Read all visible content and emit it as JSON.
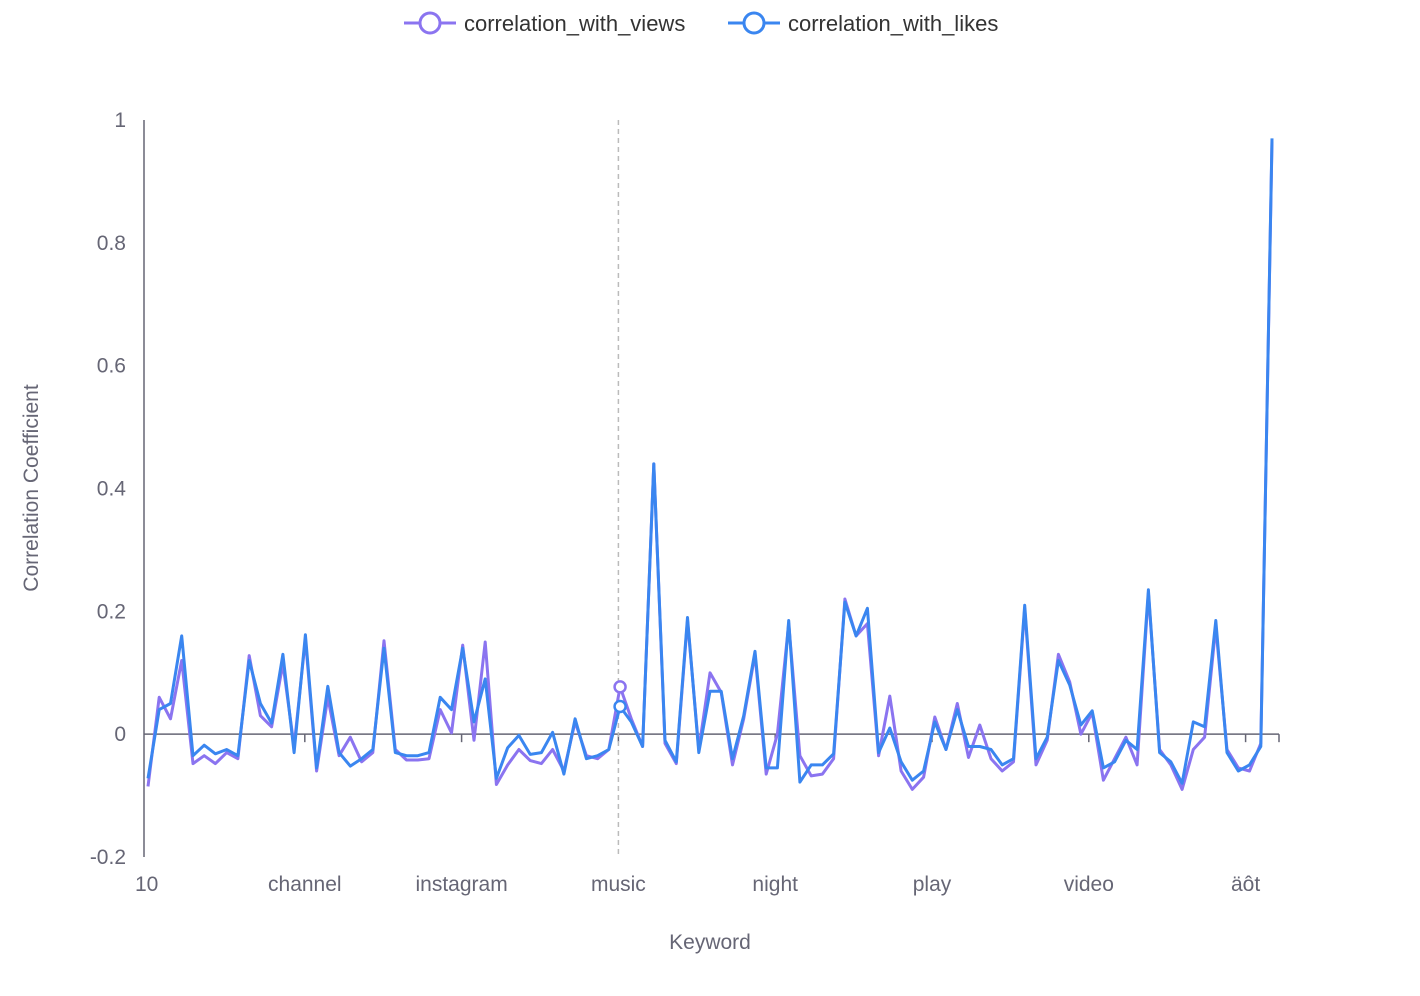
{
  "chart_data": {
    "type": "line",
    "xlabel": "Keyword",
    "ylabel": "Correlation Coefficient",
    "ylim": [
      -0.2,
      1
    ],
    "yticks": [
      "-0.2",
      "0",
      "0.2",
      "0.4",
      "0.6",
      "0.8",
      "1"
    ],
    "x_tick_labels": [
      "10",
      "channel",
      "instagram",
      "music",
      "night",
      "play",
      "video",
      "äôt"
    ],
    "legend_position": "top-center",
    "grid": false,
    "active_category": "music",
    "series": [
      {
        "name": "correlation_with_views",
        "color": "#8b74f0",
        "values": [
          -0.085,
          0.06,
          0.025,
          0.12,
          -0.048,
          -0.035,
          -0.048,
          -0.03,
          -0.04,
          0.128,
          0.03,
          0.012,
          0.115,
          -0.02,
          0.155,
          -0.06,
          0.06,
          -0.035,
          -0.005,
          -0.045,
          -0.03,
          0.152,
          -0.025,
          -0.042,
          -0.042,
          -0.04,
          0.04,
          0.002,
          0.145,
          -0.01,
          0.15,
          -0.082,
          -0.05,
          -0.025,
          -0.043,
          -0.048,
          -0.025,
          -0.06,
          0.02,
          -0.035,
          -0.04,
          -0.025,
          0.077,
          0.025,
          -0.02,
          0.44,
          -0.015,
          -0.048,
          0.185,
          -0.025,
          0.1,
          0.068,
          -0.05,
          0.025,
          0.13,
          -0.065,
          0.0,
          0.18,
          -0.035,
          -0.068,
          -0.065,
          -0.04,
          0.22,
          0.16,
          0.18,
          -0.035,
          0.062,
          -0.06,
          -0.09,
          -0.07,
          0.028,
          -0.025,
          0.05,
          -0.038,
          0.015,
          -0.04,
          -0.06,
          -0.045,
          0.205,
          -0.05,
          -0.01,
          0.13,
          0.085,
          0.0,
          0.035,
          -0.075,
          -0.04,
          -0.005,
          -0.05,
          0.23,
          -0.025,
          -0.05,
          -0.09,
          -0.025,
          -0.005,
          0.175,
          -0.025,
          -0.055,
          -0.06,
          -0.015,
          0.965
        ]
      },
      {
        "name": "correlation_with_likes",
        "color": "#3a86f0",
        "values": [
          -0.072,
          0.04,
          0.05,
          0.16,
          -0.035,
          -0.018,
          -0.032,
          -0.025,
          -0.035,
          0.12,
          0.05,
          0.018,
          0.13,
          -0.03,
          0.162,
          -0.055,
          0.078,
          -0.03,
          -0.052,
          -0.04,
          -0.025,
          0.14,
          -0.03,
          -0.035,
          -0.035,
          -0.03,
          0.06,
          0.04,
          0.14,
          0.02,
          0.09,
          -0.072,
          -0.022,
          -0.002,
          -0.033,
          -0.03,
          0.003,
          -0.065,
          0.025,
          -0.04,
          -0.035,
          -0.025,
          0.045,
          0.02,
          -0.02,
          0.44,
          -0.01,
          -0.045,
          0.19,
          -0.03,
          0.07,
          0.07,
          -0.04,
          0.03,
          0.135,
          -0.055,
          -0.055,
          0.185,
          -0.078,
          -0.05,
          -0.05,
          -0.032,
          0.215,
          0.16,
          0.205,
          -0.03,
          0.01,
          -0.045,
          -0.075,
          -0.06,
          0.02,
          -0.025,
          0.04,
          -0.02,
          -0.02,
          -0.025,
          -0.05,
          -0.04,
          0.21,
          -0.04,
          -0.005,
          0.12,
          0.08,
          0.015,
          0.038,
          -0.055,
          -0.045,
          -0.01,
          -0.025,
          0.235,
          -0.03,
          -0.045,
          -0.08,
          0.02,
          0.012,
          0.185,
          -0.03,
          -0.06,
          -0.05,
          -0.02,
          0.97
        ]
      }
    ]
  }
}
